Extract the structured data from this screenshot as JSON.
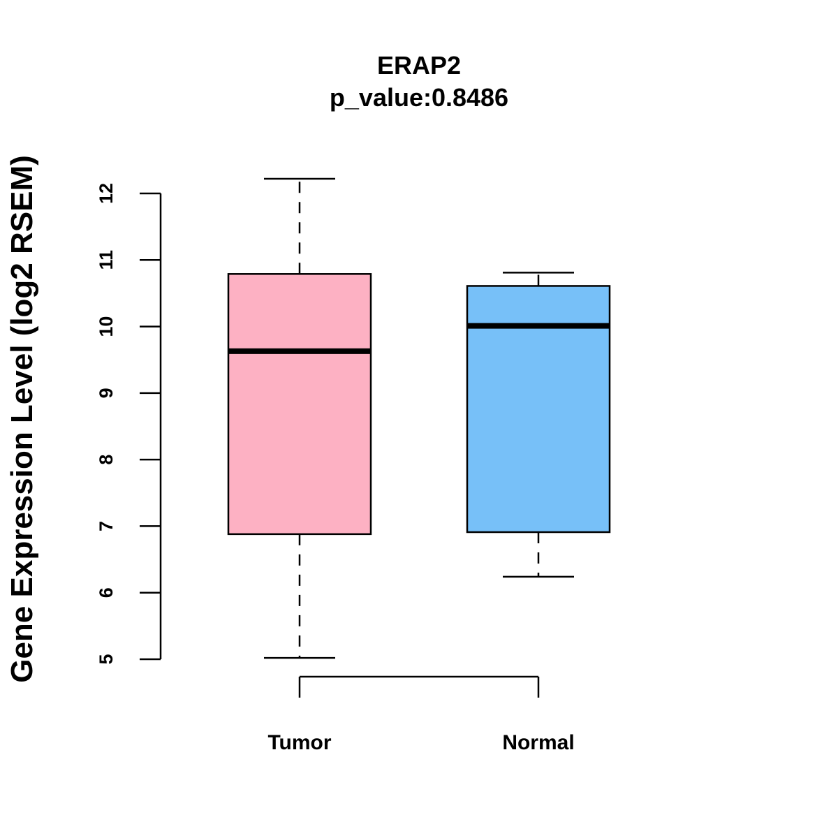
{
  "chart_data": {
    "type": "box",
    "title": "ERAP2",
    "subtitle": "p_value:0.8486",
    "xlabel": "",
    "ylabel": "Gene Expression Level (log2 RSEM)",
    "ylim": [
      5,
      12
    ],
    "yticks": [
      5,
      6,
      7,
      8,
      9,
      10,
      11,
      12
    ],
    "grid": false,
    "categories": [
      "Tumor",
      "Normal"
    ],
    "series": [
      {
        "name": "Tumor",
        "whisker_low": 5.02,
        "q1": 6.88,
        "median": 9.63,
        "q3": 10.79,
        "whisker_high": 12.22,
        "color": "#FDB1C3"
      },
      {
        "name": "Normal",
        "whisker_low": 6.24,
        "q1": 6.91,
        "median": 10.01,
        "q3": 10.61,
        "whisker_high": 10.81,
        "color": "#77C0F8"
      }
    ]
  }
}
